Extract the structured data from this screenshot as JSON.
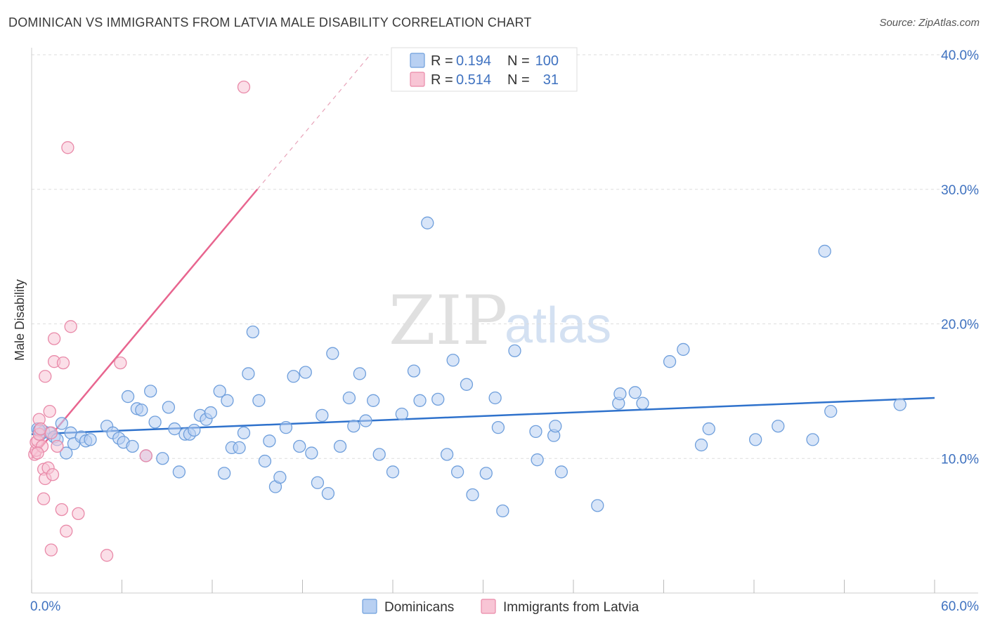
{
  "title": "DOMINICAN VS IMMIGRANTS FROM LATVIA MALE DISABILITY CORRELATION CHART",
  "source": "Source: ZipAtlas.com",
  "watermark": {
    "zip": "ZIP",
    "atlas": "atlas"
  },
  "colors": {
    "blue_fill": "#b8d0f2",
    "blue_stroke": "#6f9fdc",
    "blue_line": "#2f72cc",
    "pink_fill": "#f8c5d5",
    "pink_stroke": "#e98aa9",
    "pink_line": "#e8658f",
    "grid": "#dddddd",
    "axis_label": "#3f72c0"
  },
  "legend": {
    "rows": [
      {
        "r_label": "R =",
        "r_value": "0.194",
        "n_label": "N =",
        "n_value": "100"
      },
      {
        "r_label": "R =",
        "r_value": "0.514",
        "n_label": "N =",
        "n_value": "31"
      }
    ]
  },
  "bottom_legend": [
    "Dominicans",
    "Immigrants from Latvia"
  ],
  "chart_data": {
    "type": "scatter",
    "xlabel": "",
    "ylabel": "Male Disability",
    "xlim": [
      0,
      60
    ],
    "ylim": [
      0,
      40
    ],
    "x_ticks": [
      "0.0%",
      "60.0%"
    ],
    "y_ticks": [
      "10.0%",
      "20.0%",
      "30.0%",
      "40.0%"
    ],
    "grid": true,
    "legend_position": "top-center",
    "series": [
      {
        "name": "Dominicans",
        "trend": {
          "x0": 0,
          "y0": 11.8,
          "x1": 60,
          "y1": 14.5
        },
        "points": [
          [
            0.4,
            12.2
          ],
          [
            0.6,
            11.8
          ],
          [
            0.8,
            12.0
          ],
          [
            1.2,
            11.9
          ],
          [
            1.5,
            11.6
          ],
          [
            1.7,
            11.4
          ],
          [
            2.0,
            12.6
          ],
          [
            2.3,
            10.4
          ],
          [
            2.6,
            11.9
          ],
          [
            2.8,
            11.1
          ],
          [
            3.3,
            11.6
          ],
          [
            3.6,
            11.3
          ],
          [
            3.9,
            11.4
          ],
          [
            5.0,
            12.4
          ],
          [
            5.4,
            11.9
          ],
          [
            5.8,
            11.5
          ],
          [
            6.1,
            11.2
          ],
          [
            6.4,
            14.6
          ],
          [
            6.7,
            10.9
          ],
          [
            7.0,
            13.7
          ],
          [
            7.3,
            13.6
          ],
          [
            7.6,
            10.2
          ],
          [
            7.9,
            15.0
          ],
          [
            8.2,
            12.7
          ],
          [
            8.7,
            10.0
          ],
          [
            9.1,
            13.8
          ],
          [
            9.5,
            12.2
          ],
          [
            9.8,
            9.0
          ],
          [
            10.2,
            11.8
          ],
          [
            10.5,
            11.8
          ],
          [
            10.8,
            12.1
          ],
          [
            11.2,
            13.2
          ],
          [
            11.6,
            12.9
          ],
          [
            11.9,
            13.4
          ],
          [
            12.5,
            15.0
          ],
          [
            12.8,
            8.9
          ],
          [
            13.0,
            14.3
          ],
          [
            13.3,
            10.8
          ],
          [
            13.8,
            10.8
          ],
          [
            14.1,
            11.9
          ],
          [
            14.4,
            16.3
          ],
          [
            14.7,
            19.4
          ],
          [
            15.1,
            14.3
          ],
          [
            15.5,
            9.8
          ],
          [
            15.8,
            11.3
          ],
          [
            16.2,
            7.9
          ],
          [
            16.5,
            8.6
          ],
          [
            16.9,
            12.3
          ],
          [
            17.4,
            16.1
          ],
          [
            17.8,
            10.9
          ],
          [
            18.2,
            16.4
          ],
          [
            18.6,
            10.4
          ],
          [
            19.0,
            8.2
          ],
          [
            19.3,
            13.2
          ],
          [
            19.7,
            7.4
          ],
          [
            20.0,
            17.8
          ],
          [
            20.5,
            10.9
          ],
          [
            21.1,
            14.5
          ],
          [
            21.4,
            12.4
          ],
          [
            21.8,
            16.3
          ],
          [
            22.2,
            12.8
          ],
          [
            22.7,
            14.3
          ],
          [
            23.1,
            10.3
          ],
          [
            24.0,
            9.0
          ],
          [
            24.6,
            13.3
          ],
          [
            25.4,
            16.5
          ],
          [
            25.8,
            14.3
          ],
          [
            26.3,
            27.5
          ],
          [
            27.0,
            14.4
          ],
          [
            27.6,
            10.3
          ],
          [
            28.0,
            17.3
          ],
          [
            28.3,
            9.0
          ],
          [
            28.9,
            15.5
          ],
          [
            29.3,
            7.3
          ],
          [
            30.2,
            8.9
          ],
          [
            30.8,
            14.5
          ],
          [
            31.0,
            12.3
          ],
          [
            31.3,
            6.1
          ],
          [
            32.1,
            18.0
          ],
          [
            33.5,
            12.0
          ],
          [
            33.6,
            9.9
          ],
          [
            34.7,
            11.7
          ],
          [
            34.8,
            12.4
          ],
          [
            35.2,
            9.0
          ],
          [
            37.6,
            6.5
          ],
          [
            39.0,
            14.1
          ],
          [
            39.1,
            14.8
          ],
          [
            40.1,
            14.9
          ],
          [
            40.6,
            14.1
          ],
          [
            42.4,
            17.2
          ],
          [
            43.3,
            18.1
          ],
          [
            44.5,
            11.0
          ],
          [
            45.0,
            12.2
          ],
          [
            48.1,
            11.4
          ],
          [
            49.6,
            12.4
          ],
          [
            51.9,
            11.4
          ],
          [
            52.7,
            25.4
          ],
          [
            53.1,
            13.5
          ],
          [
            57.7,
            14.0
          ],
          [
            0.5,
            12.1
          ]
        ]
      },
      {
        "name": "Immigrants from Latvia",
        "trend": {
          "x0": 0,
          "y0": 10.0,
          "x1": 15,
          "y1": 30.0
        },
        "trend_extension": {
          "x0": 15,
          "y0": 30.0,
          "x1": 22.5,
          "y1": 40.0
        },
        "points": [
          [
            0.2,
            10.3
          ],
          [
            0.3,
            10.6
          ],
          [
            0.3,
            11.2
          ],
          [
            0.4,
            11.3
          ],
          [
            0.5,
            11.8
          ],
          [
            0.5,
            12.9
          ],
          [
            0.6,
            12.2
          ],
          [
            0.7,
            10.9
          ],
          [
            0.8,
            9.2
          ],
          [
            0.8,
            7.0
          ],
          [
            0.9,
            8.5
          ],
          [
            0.9,
            16.1
          ],
          [
            1.1,
            9.3
          ],
          [
            1.2,
            13.5
          ],
          [
            1.3,
            11.9
          ],
          [
            1.3,
            3.2
          ],
          [
            1.4,
            8.8
          ],
          [
            1.5,
            18.9
          ],
          [
            1.5,
            17.2
          ],
          [
            1.7,
            10.9
          ],
          [
            2.0,
            6.2
          ],
          [
            2.1,
            17.1
          ],
          [
            2.3,
            4.6
          ],
          [
            2.4,
            33.1
          ],
          [
            2.6,
            19.8
          ],
          [
            3.1,
            5.9
          ],
          [
            5.0,
            2.8
          ],
          [
            5.9,
            17.1
          ],
          [
            7.6,
            10.2
          ],
          [
            14.1,
            37.6
          ],
          [
            0.4,
            10.4
          ]
        ]
      }
    ]
  }
}
